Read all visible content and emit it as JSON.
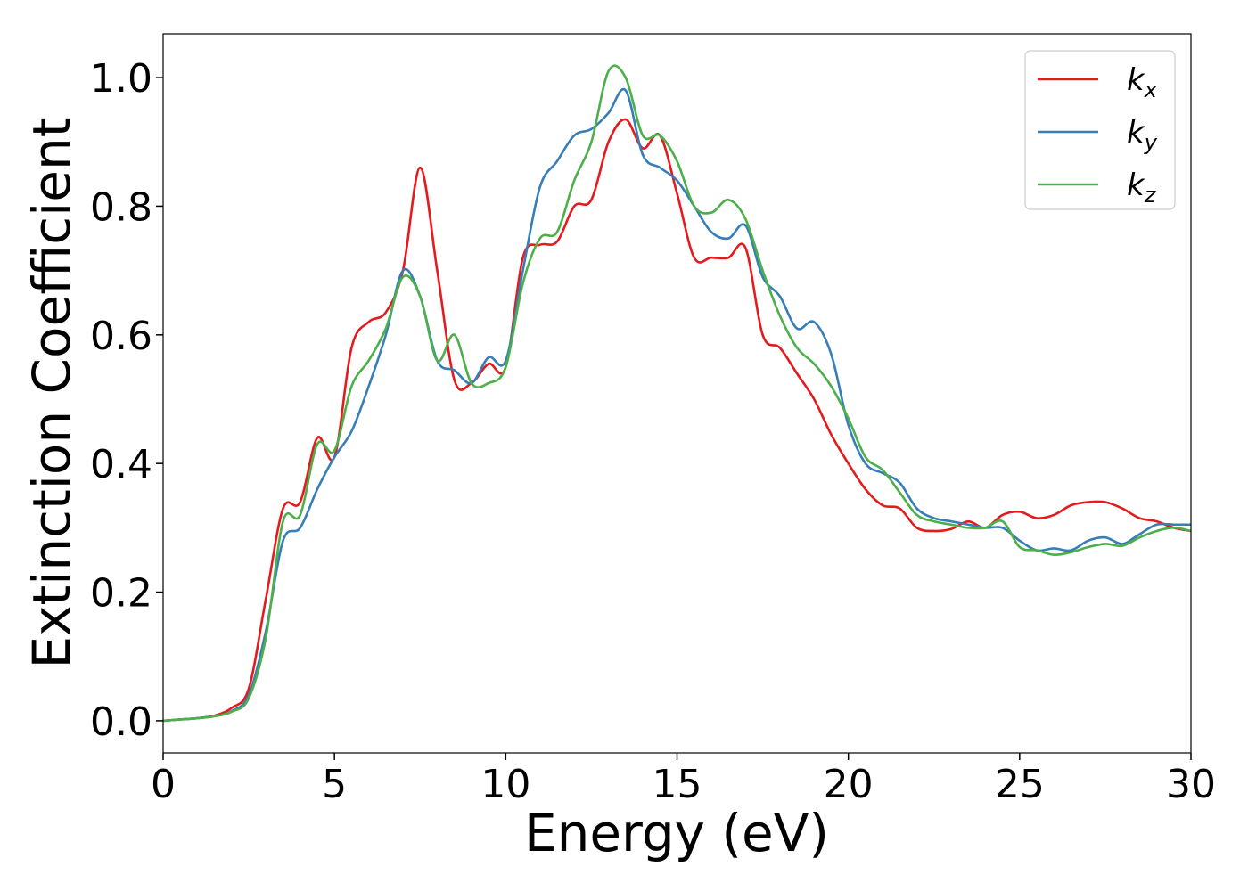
{
  "chart_data": {
    "type": "line",
    "xlabel": "Energy (eV)",
    "ylabel": "Extinction Coefficient",
    "x": [
      0,
      0.5,
      1,
      1.5,
      2,
      2.5,
      3,
      3.5,
      4,
      4.5,
      5,
      5.5,
      6,
      6.5,
      7,
      7.5,
      8,
      8.5,
      9,
      9.5,
      10,
      10.5,
      11,
      11.5,
      12,
      12.5,
      13,
      13.5,
      14,
      14.5,
      15,
      15.5,
      16,
      16.5,
      17,
      17.5,
      18,
      18.5,
      19,
      19.5,
      20,
      20.5,
      21,
      21.5,
      22,
      22.5,
      23,
      23.5,
      24,
      24.5,
      25,
      25.5,
      26,
      26.5,
      27,
      27.5,
      28,
      28.5,
      29,
      29.5,
      30
    ],
    "series": [
      {
        "name": "kx",
        "color": "#e41a1c",
        "values": [
          0,
          0.002,
          0.004,
          0.008,
          0.02,
          0.05,
          0.19,
          0.33,
          0.34,
          0.44,
          0.41,
          0.58,
          0.62,
          0.635,
          0.7,
          0.86,
          0.7,
          0.53,
          0.525,
          0.555,
          0.55,
          0.72,
          0.74,
          0.745,
          0.8,
          0.81,
          0.9,
          0.935,
          0.89,
          0.91,
          0.82,
          0.72,
          0.72,
          0.72,
          0.735,
          0.6,
          0.58,
          0.54,
          0.5,
          0.445,
          0.4,
          0.36,
          0.335,
          0.33,
          0.3,
          0.295,
          0.298,
          0.31,
          0.3,
          0.32,
          0.325,
          0.315,
          0.32,
          0.335,
          0.34,
          0.34,
          0.33,
          0.315,
          0.31,
          0.3,
          0.295
        ]
      },
      {
        "name": "ky",
        "color": "#377eb8",
        "values": [
          0,
          0.002,
          0.004,
          0.007,
          0.015,
          0.04,
          0.14,
          0.28,
          0.3,
          0.36,
          0.41,
          0.45,
          0.52,
          0.6,
          0.7,
          0.66,
          0.56,
          0.545,
          0.525,
          0.565,
          0.56,
          0.7,
          0.83,
          0.87,
          0.91,
          0.92,
          0.945,
          0.98,
          0.88,
          0.86,
          0.84,
          0.8,
          0.76,
          0.75,
          0.77,
          0.69,
          0.66,
          0.61,
          0.62,
          0.57,
          0.46,
          0.4,
          0.385,
          0.37,
          0.33,
          0.315,
          0.31,
          0.305,
          0.3,
          0.3,
          0.28,
          0.265,
          0.268,
          0.265,
          0.28,
          0.285,
          0.275,
          0.29,
          0.305,
          0.305,
          0.305
        ]
      },
      {
        "name": "kz",
        "color": "#4daf4a",
        "values": [
          0,
          0.002,
          0.004,
          0.007,
          0.014,
          0.035,
          0.13,
          0.31,
          0.32,
          0.43,
          0.42,
          0.52,
          0.56,
          0.61,
          0.69,
          0.66,
          0.56,
          0.6,
          0.525,
          0.525,
          0.55,
          0.68,
          0.75,
          0.76,
          0.84,
          0.9,
          1.01,
          1.0,
          0.91,
          0.91,
          0.87,
          0.8,
          0.79,
          0.81,
          0.78,
          0.7,
          0.63,
          0.58,
          0.555,
          0.52,
          0.47,
          0.41,
          0.39,
          0.355,
          0.32,
          0.31,
          0.305,
          0.3,
          0.3,
          0.31,
          0.27,
          0.265,
          0.258,
          0.262,
          0.27,
          0.275,
          0.272,
          0.285,
          0.295,
          0.3,
          0.295
        ]
      }
    ],
    "xlim": [
      0,
      30
    ],
    "xticks": [
      0,
      5,
      10,
      15,
      20,
      25,
      30
    ],
    "ylim": [
      -0.05,
      1.068
    ],
    "yticks": [
      {
        "value": 0,
        "label": "0.0"
      },
      0.2,
      0.4,
      0.6,
      0.8,
      {
        "value": 1,
        "label": "1.0"
      }
    ],
    "legend": "upper right",
    "grid": false
  }
}
